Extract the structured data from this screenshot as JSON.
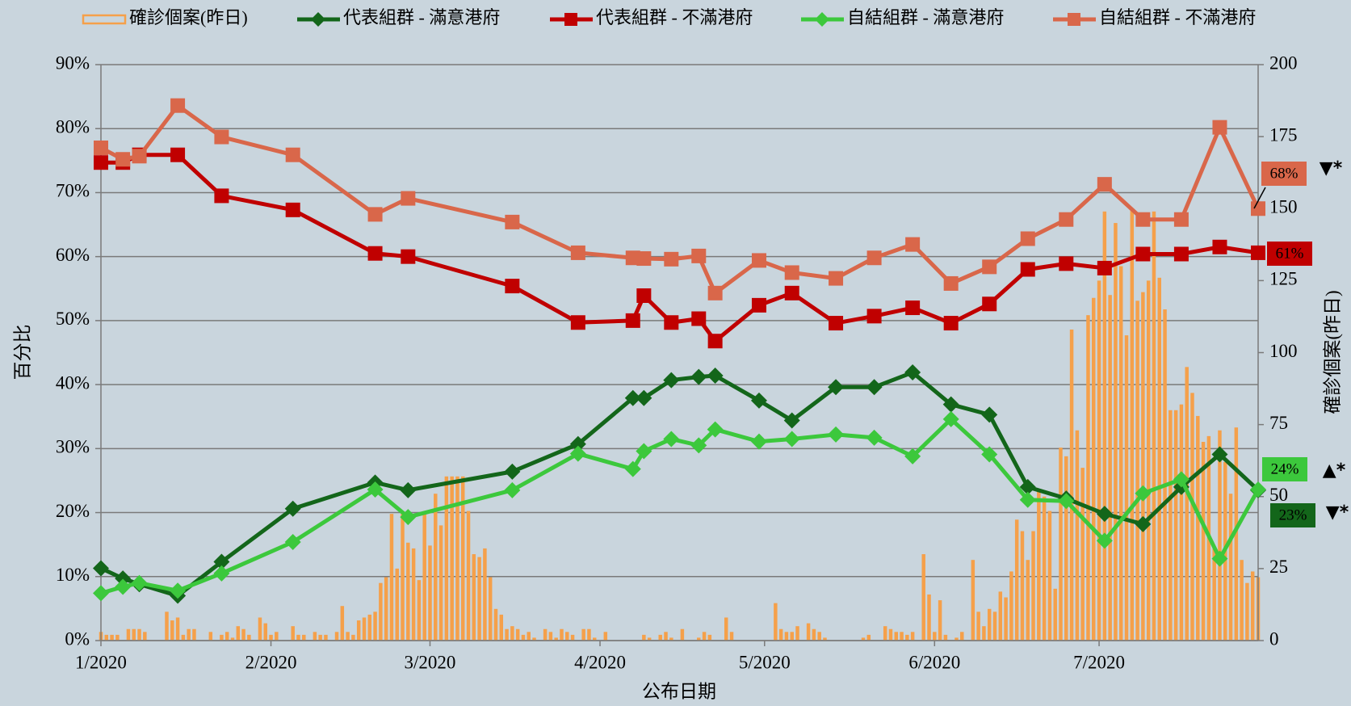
{
  "chart_data": {
    "type": "combo",
    "x_label": "公布日期",
    "y_label": "百分比",
    "y2_label": "確診個案(昨日)",
    "background": "#c9d5dd",
    "grid": true,
    "x": [
      0,
      4,
      7,
      14,
      22,
      35,
      50,
      56,
      75,
      87,
      97,
      99,
      104,
      109,
      112,
      120,
      126,
      134,
      141,
      148,
      155,
      162,
      169,
      176,
      183,
      190,
      197,
      204,
      211
    ],
    "xlim": [
      0,
      211
    ],
    "xticks": [
      {
        "value": 0,
        "label": "1/2020"
      },
      {
        "value": 31,
        "label": "2/2020"
      },
      {
        "value": 60,
        "label": "3/2020"
      },
      {
        "value": 91,
        "label": "4/2020"
      },
      {
        "value": 121,
        "label": "5/2020"
      },
      {
        "value": 152,
        "label": "6/2020"
      },
      {
        "value": 182,
        "label": "7/2020"
      }
    ],
    "ylim": [
      0,
      90
    ],
    "yticks": [
      {
        "value": 0,
        "label": "0%"
      },
      {
        "value": 10,
        "label": "10%"
      },
      {
        "value": 20,
        "label": "20%"
      },
      {
        "value": 30,
        "label": "30%"
      },
      {
        "value": 40,
        "label": "40%"
      },
      {
        "value": 50,
        "label": "50%"
      },
      {
        "value": 60,
        "label": "60%"
      },
      {
        "value": 70,
        "label": "70%"
      },
      {
        "value": 80,
        "label": "80%"
      },
      {
        "value": 90,
        "label": "90%"
      }
    ],
    "y2lim": [
      0,
      200
    ],
    "y2ticks": [
      0,
      25,
      50,
      75,
      100,
      125,
      150,
      175,
      200
    ],
    "series": [
      {
        "name": "確診個案(昨日)",
        "type": "bar",
        "axis": "y2",
        "color": "#f5a04a",
        "x": [
          0,
          1,
          2,
          3,
          4,
          5,
          6,
          7,
          8,
          9,
          10,
          11,
          12,
          13,
          14,
          15,
          16,
          17,
          18,
          19,
          20,
          21,
          22,
          23,
          24,
          25,
          26,
          27,
          28,
          29,
          30,
          31,
          32,
          33,
          34,
          35,
          36,
          37,
          38,
          39,
          40,
          41,
          42,
          43,
          44,
          45,
          46,
          47,
          48,
          49,
          50,
          51,
          52,
          53,
          54,
          55,
          56,
          57,
          58,
          59,
          60,
          61,
          62,
          63,
          64,
          65,
          66,
          67,
          68,
          69,
          70,
          71,
          72,
          73,
          74,
          75,
          76,
          77,
          78,
          79,
          80,
          81,
          82,
          83,
          84,
          85,
          86,
          87,
          88,
          89,
          90,
          91,
          92,
          93,
          94,
          95,
          96,
          97,
          98,
          99,
          100,
          101,
          102,
          103,
          104,
          105,
          106,
          107,
          108,
          109,
          110,
          111,
          112,
          113,
          114,
          115,
          116,
          117,
          118,
          119,
          120,
          121,
          122,
          123,
          124,
          125,
          126,
          127,
          128,
          129,
          130,
          131,
          132,
          133,
          134,
          135,
          136,
          137,
          138,
          139,
          140,
          141,
          142,
          143,
          144,
          145,
          146,
          147,
          148,
          149,
          150,
          151,
          152,
          153,
          154,
          155,
          156,
          157,
          158,
          159,
          160,
          161,
          162,
          163,
          164,
          165,
          166,
          167,
          168,
          169,
          170,
          171,
          172,
          173,
          174,
          175,
          176,
          177,
          178,
          179,
          180,
          181,
          182,
          183,
          184,
          185,
          186,
          187,
          188,
          189,
          190,
          191,
          192,
          193,
          194,
          195,
          196,
          197,
          198,
          199,
          200,
          201,
          202,
          203,
          204,
          205,
          206,
          207,
          208,
          209,
          210,
          211
        ],
        "values": [
          3,
          2,
          2,
          2,
          0,
          4,
          4,
          4,
          3,
          0,
          0,
          0,
          10,
          7,
          8,
          2,
          4,
          4,
          0,
          0,
          3,
          0,
          2,
          3,
          1,
          5,
          4,
          2,
          0,
          8,
          6,
          2,
          3,
          0,
          0,
          5,
          2,
          2,
          0,
          3,
          2,
          2,
          0,
          3,
          12,
          3,
          2,
          7,
          8,
          9,
          10,
          20,
          22,
          44,
          25,
          44,
          34,
          32,
          21,
          44,
          33,
          51,
          40,
          57,
          57,
          57,
          57,
          45,
          30,
          29,
          32,
          22,
          11,
          9,
          4,
          5,
          4,
          2,
          3,
          1,
          0,
          4,
          3,
          1,
          4,
          3,
          2,
          0,
          4,
          4,
          1,
          0,
          3,
          0,
          0,
          0,
          0,
          0,
          0,
          2,
          1,
          0,
          2,
          3,
          1,
          0,
          4,
          0,
          0,
          1,
          3,
          2,
          0,
          0,
          8,
          3,
          0,
          0,
          0,
          0,
          0,
          0,
          0,
          13,
          4,
          3,
          3,
          5,
          0,
          6,
          4,
          3,
          1,
          0,
          0,
          0,
          0,
          0,
          0,
          1,
          2,
          0,
          0,
          5,
          4,
          3,
          3,
          2,
          3,
          0,
          30,
          16,
          3,
          14,
          2,
          0,
          1,
          3,
          0,
          28,
          10,
          5,
          11,
          10,
          17,
          15,
          24,
          42,
          38,
          28,
          38,
          52,
          50,
          45,
          18,
          67,
          64,
          108,
          73,
          60,
          113,
          119,
          125,
          149,
          120,
          145,
          130,
          106,
          150,
          118,
          121,
          125,
          149,
          126,
          115,
          80,
          80,
          82,
          95,
          86,
          78,
          69,
          71,
          32,
          73,
          62,
          51,
          74,
          28,
          20,
          24,
          22
        ]
      },
      {
        "name": "代表組群 - 滿意港府",
        "type": "line",
        "marker": "diamond",
        "color": "#13661a",
        "values": [
          11.3,
          9.7,
          8.8,
          7.0,
          12.3,
          20.6,
          24.7,
          23.5,
          26.4,
          30.7,
          37.9,
          37.9,
          40.7,
          41.2,
          41.4,
          37.5,
          34.4,
          39.6,
          39.6,
          41.9,
          36.9,
          35.3,
          24.0,
          22.2,
          19.8,
          18.2,
          24.0,
          29.1,
          23.5
        ]
      },
      {
        "name": "代表組群 - 不滿港府",
        "type": "line",
        "marker": "square",
        "color": "#c00000",
        "values": [
          74.7,
          74.7,
          75.9,
          75.9,
          69.5,
          67.3,
          60.5,
          60.0,
          55.4,
          49.7,
          50.0,
          53.9,
          49.7,
          50.3,
          46.8,
          52.4,
          54.3,
          49.6,
          50.7,
          52.0,
          49.6,
          52.6,
          58.0,
          58.9,
          58.2,
          60.4,
          60.4,
          61.5,
          60.6
        ]
      },
      {
        "name": "自結組群 - 滿意港府",
        "type": "line",
        "marker": "diamond",
        "color": "#3cc83c",
        "values": [
          7.4,
          8.4,
          9.0,
          7.8,
          10.5,
          15.4,
          23.6,
          19.3,
          23.5,
          29.2,
          26.8,
          29.6,
          31.5,
          30.5,
          33.0,
          31.1,
          31.5,
          32.2,
          31.7,
          28.8,
          34.6,
          29.1,
          22.0,
          21.8,
          15.6,
          23.0,
          25.2,
          12.8,
          23.6
        ]
      },
      {
        "name": "自結組群 - 不滿港府",
        "type": "line",
        "marker": "square",
        "color": "#d9674a",
        "values": [
          77.0,
          75.2,
          75.7,
          83.6,
          78.7,
          75.9,
          66.6,
          69.1,
          65.4,
          60.6,
          59.8,
          59.7,
          59.6,
          60.1,
          54.3,
          59.4,
          57.5,
          56.6,
          59.8,
          61.9,
          55.8,
          58.4,
          62.8,
          65.8,
          71.3,
          65.8,
          65.8,
          80.2,
          67.5
        ]
      }
    ],
    "annotations": [
      {
        "text": "68%",
        "color": "#d9674a"
      },
      {
        "text": "61%",
        "color": "#c00000"
      },
      {
        "text": "24%",
        "color": "#3cc83c"
      },
      {
        "text": "23%",
        "color": "#13661a"
      },
      {
        "text": "▼*",
        "color": "#ff0000"
      },
      {
        "text": "▲*",
        "color": "#1aa84a"
      },
      {
        "text": "▼*",
        "color": "#ff0000"
      }
    ]
  }
}
